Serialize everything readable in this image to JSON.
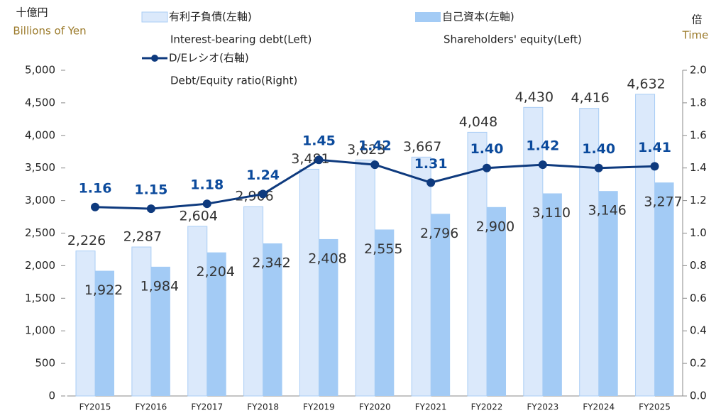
{
  "chart_data": {
    "type": "bar_line",
    "y_unit": "十億円",
    "y_unit_en": "Billions of Yen",
    "y2_unit": "倍",
    "y2_unit_en": "Time",
    "categories": [
      "FY2015",
      "FY2016",
      "FY2017",
      "FY2018",
      "FY2019",
      "FY2020",
      "FY2021",
      "FY2022",
      "FY2023",
      "FY2024",
      "FY2025"
    ],
    "series": [
      {
        "name": "有利子負債(左軸)",
        "name_en": "Interest-bearing debt(Left)",
        "type": "bar",
        "color": "#dbe9fb",
        "stroke": "#a9cdf5",
        "values": [
          2226,
          2287,
          2604,
          2906,
          3481,
          3623,
          3667,
          4048,
          4430,
          4416,
          4632
        ],
        "value_labels": [
          "2,226",
          "2,287",
          "2,604",
          "2,906",
          "3,481",
          "3,623",
          "3,667",
          "4,048",
          "4,430",
          "4,416",
          "4,632"
        ]
      },
      {
        "name": "自己資本(左軸)",
        "name_en": "Shareholders' equity(Left)",
        "type": "bar",
        "color": "#a3cbf5",
        "values": [
          1922,
          1984,
          2204,
          2342,
          2408,
          2555,
          2796,
          2900,
          3110,
          3146,
          3277
        ],
        "value_labels": [
          "1,922",
          "1,984",
          "2,204",
          "2,342",
          "2,408",
          "2,555",
          "2,796",
          "2,900",
          "3,110",
          "3,146",
          "3,277"
        ]
      },
      {
        "name": "D/Eレシオ(右軸)",
        "name_en": "Debt/Equity ratio(Right)",
        "type": "line",
        "axis": "y2",
        "color": "#0e3a7e",
        "values": [
          1.16,
          1.15,
          1.18,
          1.24,
          1.45,
          1.42,
          1.31,
          1.4,
          1.42,
          1.4,
          1.41
        ],
        "value_labels": [
          "1.16",
          "1.15",
          "1.18",
          "1.24",
          "1.45",
          "1.42",
          "1.31",
          "1.40",
          "1.42",
          "1.40",
          "1.41"
        ]
      }
    ],
    "ylim": [
      0,
      5000
    ],
    "yticks": [
      0,
      500,
      {
        "value": 1000,
        "label": "1,000"
      },
      {
        "value": 1500,
        "label": "1,500"
      },
      {
        "value": 2000,
        "label": "2,000"
      },
      {
        "value": 2500,
        "label": "2,500"
      },
      {
        "value": 3000,
        "label": "3,000"
      },
      {
        "value": 3500,
        "label": "3,500"
      },
      {
        "value": 4000,
        "label": "4,000"
      },
      {
        "value": 4500,
        "label": "4,500"
      },
      {
        "value": 5000,
        "label": "5,000"
      }
    ],
    "y2lim": [
      0,
      2
    ],
    "y2ticks": [
      {
        "value": 0,
        "label": "0.0"
      },
      0.2,
      0.4,
      0.6,
      0.8,
      {
        "value": 1,
        "label": "1.0"
      },
      1.2,
      1.4,
      1.6,
      1.8,
      {
        "value": 2,
        "label": "2.0"
      }
    ]
  }
}
